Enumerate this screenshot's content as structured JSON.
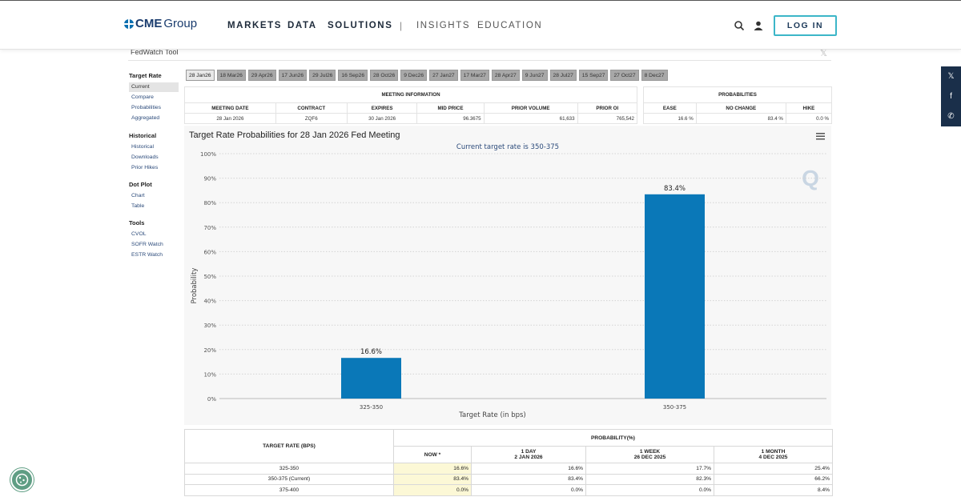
{
  "header": {
    "logo": {
      "brand": "CME",
      "suffix": "Group"
    },
    "nav": [
      "MARKETS",
      "DATA",
      "SOLUTIONS",
      "INSIGHTS",
      "EDUCATION"
    ],
    "separator": "|",
    "login_label": "LOG IN"
  },
  "page": {
    "title": "FedWatch Tool",
    "close_glyph": "𝕏"
  },
  "sidebar": {
    "groups": [
      {
        "heading": "Target Rate",
        "items": [
          "Current",
          "Compare",
          "Probabilities",
          "Aggregated"
        ]
      },
      {
        "heading": "Historical",
        "items": [
          "Historical",
          "Downloads",
          "Prior Hikes"
        ]
      },
      {
        "heading": "Dot Plot",
        "items": [
          "Chart",
          "Table"
        ]
      },
      {
        "heading": "Tools",
        "items": [
          "CVOL",
          "SOFR Watch",
          "ESTR Watch"
        ]
      }
    ]
  },
  "meeting_tabs": [
    "28 Jan26",
    "18 Mar26",
    "29 Apr26",
    "17 Jun26",
    "29 Jul26",
    "16 Sep26",
    "28 Oct26",
    "9 Dec26",
    "27 Jan27",
    "17 Mar27",
    "28 Apr27",
    "9 Jun27",
    "28 Jul27",
    "15 Sep27",
    "27 Oct27",
    "8 Dec27"
  ],
  "meeting_info": {
    "caption": "MEETING INFORMATION",
    "headers": [
      "MEETING DATE",
      "CONTRACT",
      "EXPIRES",
      "MID PRICE",
      "PRIOR VOLUME",
      "PRIOR OI"
    ],
    "row": [
      "28 Jan 2026",
      "ZQF6",
      "30 Jan 2026",
      "96.3675",
      "61,633",
      "765,542"
    ]
  },
  "probabilities": {
    "caption": "PROBABILITIES",
    "headers": [
      "EASE",
      "NO CHANGE",
      "HIKE"
    ],
    "row": [
      "16.6 %",
      "83.4 %",
      "0.0 %"
    ]
  },
  "chart_data": {
    "type": "bar",
    "title": "Target Rate Probabilities for 28 Jan 2026 Fed Meeting",
    "subtitle": "Current target rate is 350-375",
    "categories": [
      "325-350",
      "350-375"
    ],
    "values": [
      16.6,
      83.4
    ],
    "value_labels": [
      "16.6%",
      "83.4%"
    ],
    "xlabel": "Target Rate (in bps)",
    "ylabel": "Probability",
    "ylim": [
      0,
      100
    ],
    "yticks": [
      "0%",
      "10%",
      "20%",
      "30%",
      "40%",
      "50%",
      "60%",
      "70%",
      "80%",
      "90%",
      "100%"
    ],
    "bar_color": "#0a78b8",
    "watermark": "Q"
  },
  "prob_table": {
    "col_rate": "TARGET RATE (BPS)",
    "col_prob": "PROBABILITY(%)",
    "sub_headers": [
      {
        "line1": "NOW *",
        "line2": ""
      },
      {
        "line1": "1 DAY",
        "line2": "2 JAN 2026"
      },
      {
        "line1": "1 WEEK",
        "line2": "26 DEC 2025"
      },
      {
        "line1": "1 MONTH",
        "line2": "4 DEC 2025"
      }
    ],
    "rows": [
      [
        "325-350",
        "16.6%",
        "16.6%",
        "17.7%",
        "25.4%"
      ],
      [
        "350-375 (Current)",
        "83.4%",
        "83.4%",
        "82.3%",
        "66.2%"
      ],
      [
        "375-400",
        "0.0%",
        "0.0%",
        "0.0%",
        "8.4%"
      ]
    ]
  },
  "social": [
    "𝕏",
    "f",
    "✆"
  ]
}
